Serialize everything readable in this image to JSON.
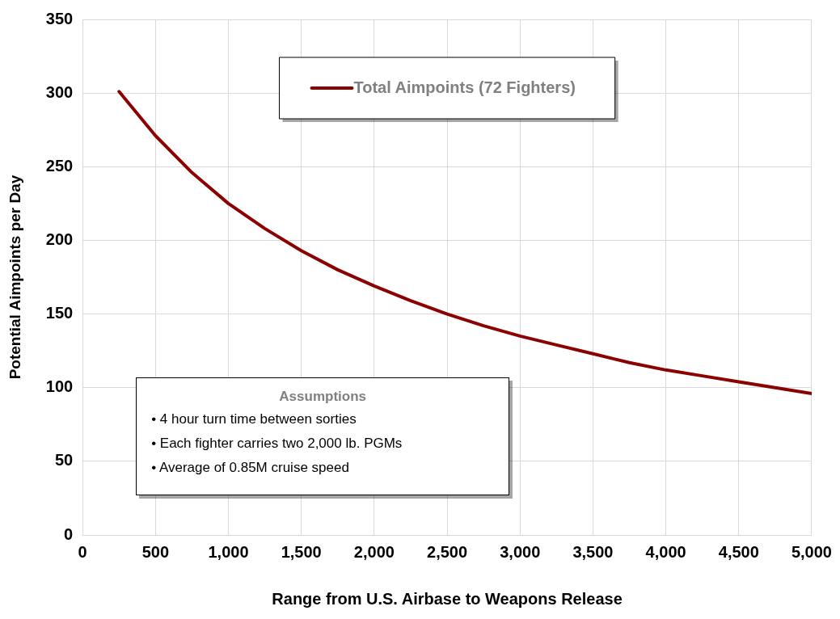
{
  "chart_data": {
    "type": "line",
    "xlabel": "Range from U.S. Airbase to Weapons Release",
    "ylabel": "Potential Aimpoints per Day",
    "x": [
      250,
      500,
      750,
      1000,
      1250,
      1500,
      1750,
      2000,
      2250,
      2500,
      2750,
      3000,
      3250,
      3500,
      3750,
      4000,
      4250,
      4500,
      4750,
      5000
    ],
    "series": [
      {
        "name": "Total Aimpoints (72 Fighters)",
        "color": "#8b0000",
        "values": [
          301,
          271,
          246,
          225,
          208,
          193,
          180,
          169,
          159,
          150,
          142,
          135,
          129,
          123,
          117,
          112,
          108,
          104,
          100,
          96
        ]
      }
    ],
    "xlim": [
      0,
      5000
    ],
    "xticks": [
      {
        "value": 0,
        "label": "0"
      },
      {
        "value": 500,
        "label": "500"
      },
      {
        "value": 1000,
        "label": "1,000"
      },
      {
        "value": 1500,
        "label": "1,500"
      },
      {
        "value": 2000,
        "label": "2,000"
      },
      {
        "value": 2500,
        "label": "2,500"
      },
      {
        "value": 3000,
        "label": "3,000"
      },
      {
        "value": 3500,
        "label": "3,500"
      },
      {
        "value": 4000,
        "label": "4,000"
      },
      {
        "value": 4500,
        "label": "4,500"
      },
      {
        "value": 5000,
        "label": "5,000"
      }
    ],
    "ylim": [
      0,
      350
    ],
    "yticks": [
      0,
      50,
      100,
      150,
      200,
      250,
      300,
      350
    ],
    "grid": true,
    "legend": "top",
    "marker": "none",
    "line_style": "solid",
    "annotations": [
      "Assumptions",
      "• 4 hour turn time between sorties",
      "• Each fighter carries two 2,000 lb. PGMs",
      "• Average of 0.85M cruise speed"
    ]
  }
}
